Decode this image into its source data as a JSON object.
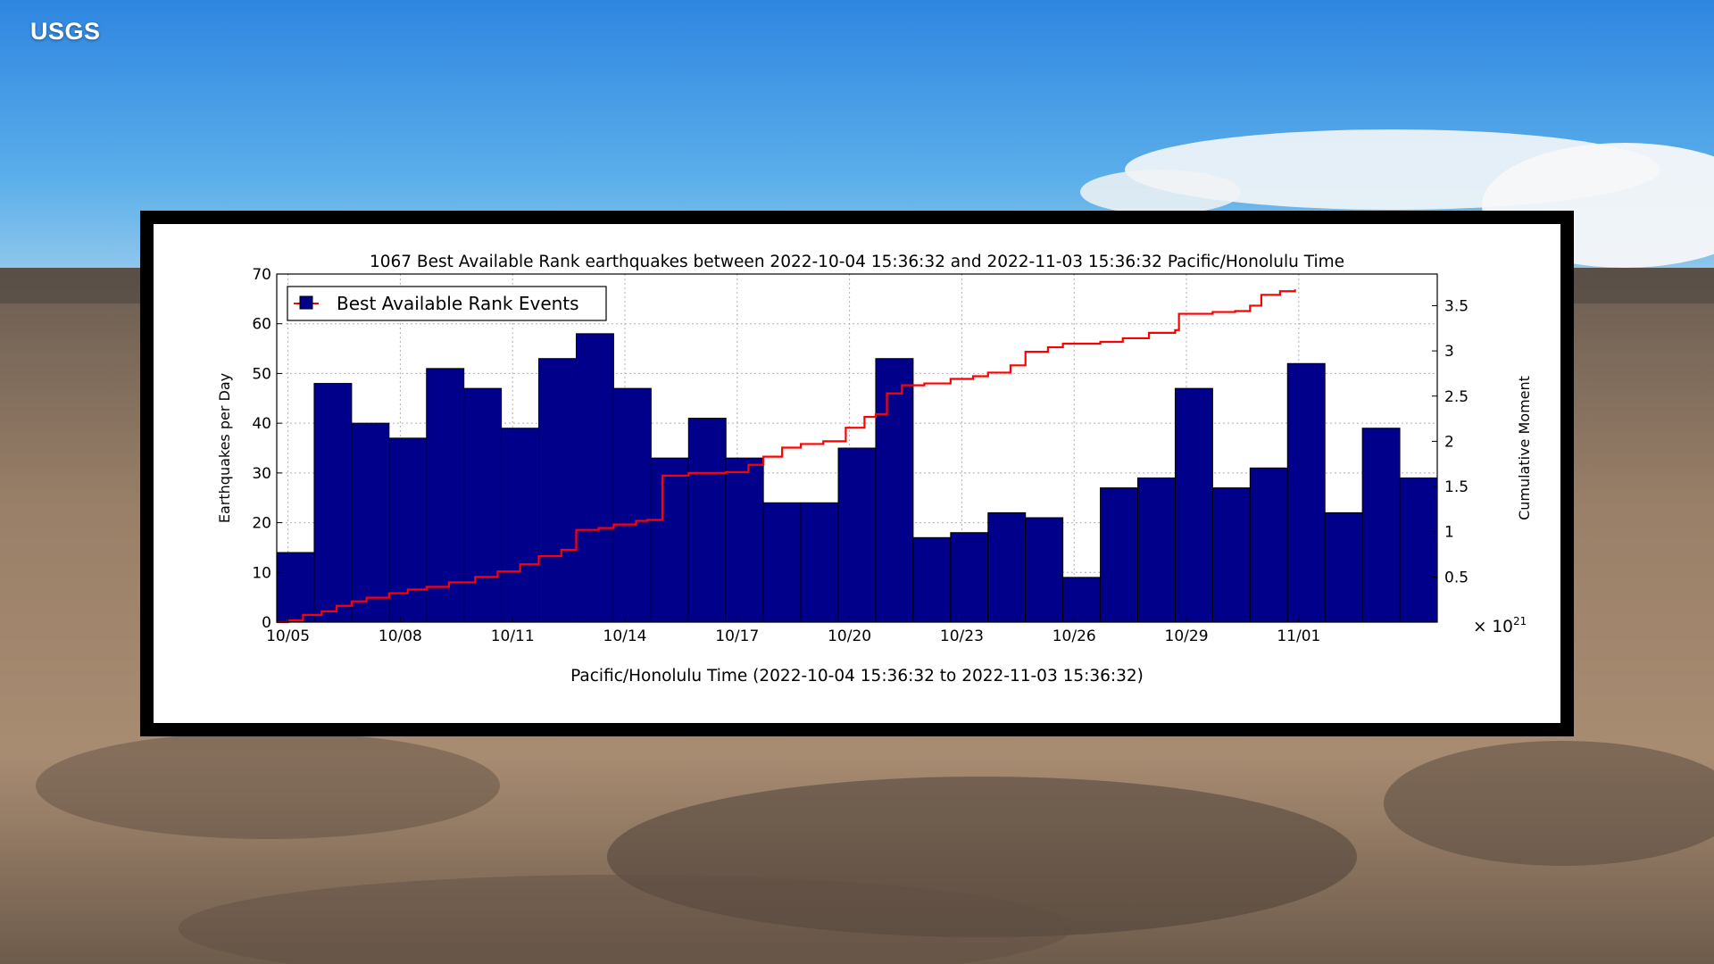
{
  "brand": {
    "logo_text": "USGS"
  },
  "colors": {
    "bar_fill": "#00008b",
    "line": "#ff0000",
    "grid": "#b0b0b0",
    "frame": "#000000"
  },
  "chart_data": {
    "type": "bar",
    "title": "1067 Best Available Rank earthquakes between 2022-10-04 15:36:32 and 2022-11-03 15:36:32 Pacific/Honolulu Time",
    "xlabel": "Pacific/Honolulu Time (2022-10-04 15:36:32 to 2022-11-03 15:36:32)",
    "ylabel": "Earthquakes per Day",
    "y2label": "Cumulative Moment",
    "y2_multiplier": "× 10",
    "y2_exponent": "21",
    "ylim": [
      0,
      70
    ],
    "y2lim": [
      0,
      3.85
    ],
    "yticks": [
      "0",
      "10",
      "20",
      "30",
      "40",
      "50",
      "60",
      "70"
    ],
    "y2ticks": [
      "0.5",
      "1",
      "1.5",
      "2",
      "2.5",
      "3",
      "3.5"
    ],
    "xticks": [
      "10/05",
      "10/08",
      "10/11",
      "10/14",
      "10/17",
      "10/20",
      "10/23",
      "10/26",
      "10/29",
      "11/01"
    ],
    "legend": {
      "label": "Best Available Rank Events",
      "position": "top-left"
    },
    "grid": true,
    "daily_counts": [
      14,
      48,
      40,
      37,
      51,
      47,
      39,
      53,
      58,
      47,
      33,
      41,
      33,
      24,
      24,
      35,
      53,
      17,
      18,
      22,
      21,
      9,
      27,
      29,
      47,
      27,
      31,
      52,
      22,
      39,
      29
    ],
    "cumulative_moment": [
      [
        0,
        0
      ],
      [
        0.3,
        0.02
      ],
      [
        0.7,
        0.08
      ],
      [
        1.2,
        0.12
      ],
      [
        1.6,
        0.18
      ],
      [
        2.0,
        0.23
      ],
      [
        2.4,
        0.27
      ],
      [
        3.0,
        0.32
      ],
      [
        3.5,
        0.36
      ],
      [
        4.0,
        0.39
      ],
      [
        4.6,
        0.44
      ],
      [
        5.3,
        0.5
      ],
      [
        5.9,
        0.56
      ],
      [
        6.5,
        0.64
      ],
      [
        7.0,
        0.73
      ],
      [
        7.6,
        0.8
      ],
      [
        8.0,
        1.02
      ],
      [
        8.6,
        1.04
      ],
      [
        9.0,
        1.08
      ],
      [
        9.6,
        1.12
      ],
      [
        9.9,
        1.13
      ],
      [
        10.3,
        1.62
      ],
      [
        11.0,
        1.65
      ],
      [
        12.0,
        1.66
      ],
      [
        12.6,
        1.74
      ],
      [
        13.0,
        1.83
      ],
      [
        13.5,
        1.93
      ],
      [
        14.0,
        1.97
      ],
      [
        14.6,
        2.0
      ],
      [
        15.2,
        2.15
      ],
      [
        15.7,
        2.27
      ],
      [
        16.0,
        2.3
      ],
      [
        16.3,
        2.53
      ],
      [
        16.7,
        2.62
      ],
      [
        17.3,
        2.64
      ],
      [
        18.0,
        2.69
      ],
      [
        18.6,
        2.72
      ],
      [
        19.0,
        2.76
      ],
      [
        19.6,
        2.84
      ],
      [
        20.0,
        2.99
      ],
      [
        20.6,
        3.04
      ],
      [
        21.0,
        3.08
      ],
      [
        22.0,
        3.1
      ],
      [
        22.6,
        3.14
      ],
      [
        23.3,
        3.2
      ],
      [
        24.0,
        3.23
      ],
      [
        24.1,
        3.41
      ],
      [
        25.0,
        3.43
      ],
      [
        25.6,
        3.44
      ],
      [
        26.0,
        3.5
      ],
      [
        26.3,
        3.62
      ],
      [
        26.8,
        3.66
      ],
      [
        27.2,
        3.68
      ]
    ]
  }
}
